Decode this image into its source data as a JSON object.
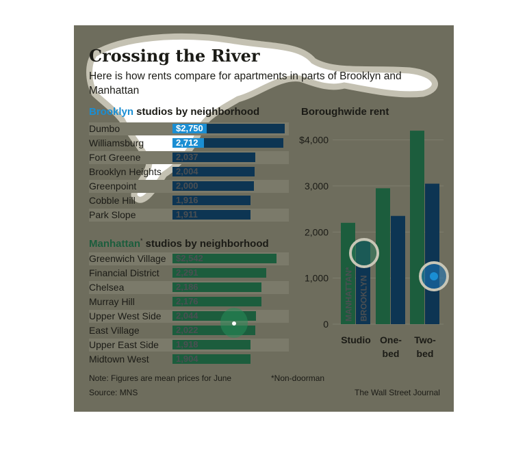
{
  "title": "Crossing the River",
  "subtitle": "Here is how rents compare for apartments in parts of Brooklyn and Manhattan",
  "colors": {
    "panel": "#6e6d5d",
    "brooklyn_bar": "#0d3553",
    "brooklyn_highlight": "#1a8ed3",
    "manhattan_bar": "#1c5d3d",
    "stripe": "#7b7a6a",
    "brooklyn_word": "#1a8ed3",
    "manhattan_word": "#1c5d3d"
  },
  "brooklyn": {
    "heading_word": "Brooklyn",
    "heading_rest": " studios by neighborhood",
    "rows": [
      {
        "name": "Dumbo",
        "value": 2750,
        "label": "$2,750"
      },
      {
        "name": "Williamsburg",
        "value": 2712,
        "label": "2,712"
      },
      {
        "name": "Fort Greene",
        "value": 2037,
        "label": "2,037"
      },
      {
        "name": "Brooklyn Heights",
        "value": 2004,
        "label": "2,004"
      },
      {
        "name": "Greenpoint",
        "value": 2000,
        "label": "2,000"
      },
      {
        "name": "Cobble Hill",
        "value": 1916,
        "label": "1,916"
      },
      {
        "name": "Park Slope",
        "value": 1911,
        "label": "1,911"
      }
    ]
  },
  "manhattan": {
    "heading_word": "Manhattan",
    "heading_mark": "*",
    "heading_rest": " studios by neighborhood",
    "rows": [
      {
        "name": "Greenwich Village",
        "value": 2542,
        "label": "$2,542"
      },
      {
        "name": "Financial District",
        "value": 2291,
        "label": "2,291"
      },
      {
        "name": "Chelsea",
        "value": 2186,
        "label": "2,186"
      },
      {
        "name": "Murray Hill",
        "value": 2176,
        "label": "2,176"
      },
      {
        "name": "Upper West Side",
        "value": 2044,
        "label": "2,044"
      },
      {
        "name": "East Village",
        "value": 2022,
        "label": "2,022"
      },
      {
        "name": "Upper East Side",
        "value": 1918,
        "label": "1,918"
      },
      {
        "name": "Midtown West",
        "value": 1904,
        "label": "1,904"
      }
    ]
  },
  "chart_data": {
    "type": "bar",
    "title": "Boroughwide rent",
    "categories": [
      "Studio",
      "One-bed",
      "Two-bed"
    ],
    "category_lines": [
      [
        "Studio"
      ],
      [
        "One-",
        "bed"
      ],
      [
        "Two-",
        "bed"
      ]
    ],
    "series": [
      {
        "name": "MANHATTAN*",
        "values": [
          2200,
          2950,
          4200
        ]
      },
      {
        "name": "BROOKLYN",
        "values": [
          1800,
          2350,
          3050
        ]
      }
    ],
    "yticks": [
      "0",
      "1,000",
      "2,000",
      "3,000",
      "$4,000"
    ],
    "ylim": [
      0,
      4350
    ]
  },
  "footer": {
    "note": "Note: Figures are mean prices for June",
    "asterisk": "*Non-doorman",
    "source": "Source: MNS",
    "credit": "The Wall Street Journal"
  }
}
